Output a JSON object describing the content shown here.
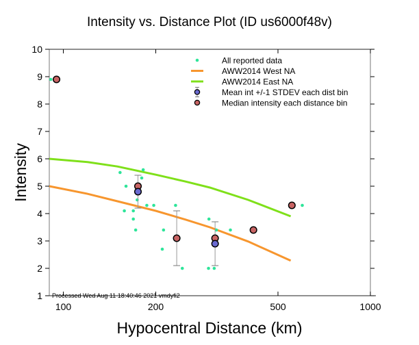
{
  "chart_data": {
    "type": "scatter",
    "title": "Intensity vs. Distance Plot (ID us6000f48v)",
    "xlabel": "Hypocentral Distance (km)",
    "ylabel": "Intensity",
    "xscale": "log",
    "xlim": [
      90,
      1000
    ],
    "ylim": [
      1,
      10
    ],
    "xticks": [
      100,
      200,
      500,
      1000
    ],
    "xtick_labels": [
      "100",
      "200",
      "500",
      "1000"
    ],
    "yticks": [
      1,
      2,
      3,
      4,
      5,
      6,
      7,
      8,
      9,
      10
    ],
    "ytick_labels": [
      "1",
      "2",
      "3",
      "4",
      "5",
      "6",
      "7",
      "8",
      "9",
      "10"
    ],
    "grid": false,
    "legend_position": "top-right",
    "legend": [
      {
        "label": "All reported data",
        "kind": "dot",
        "color": "#2ee59a"
      },
      {
        "label": "AWW2014 West NA",
        "kind": "line",
        "color": "#f7962e"
      },
      {
        "label": "AWW2014 East NA",
        "kind": "line",
        "color": "#7fe01a"
      },
      {
        "label": "Mean int +/-1 STDEV each dist bin",
        "kind": "mean",
        "color": "#6a6ad0"
      },
      {
        "label": "Median intensity each distance bin",
        "kind": "median",
        "color": "#c86464"
      }
    ],
    "annotation": "Processed Wed Aug 11 18:40:46 2021 vmdyfi2",
    "series": [
      {
        "name": "All reported data",
        "color": "#2ee59a",
        "points": [
          [
            91,
            8.9
          ],
          [
            153,
            5.5
          ],
          [
            182,
            5.6
          ],
          [
            180,
            5.3
          ],
          [
            160,
            5.0
          ],
          [
            174,
            4.5
          ],
          [
            187,
            4.3
          ],
          [
            197,
            4.3
          ],
          [
            158,
            4.1
          ],
          [
            169,
            4.1
          ],
          [
            169,
            3.8
          ],
          [
            172,
            3.4
          ],
          [
            212,
            3.4
          ],
          [
            210,
            2.7
          ],
          [
            232,
            4.3
          ],
          [
            244,
            2.0
          ],
          [
            298,
            3.8
          ],
          [
            315,
            3.4
          ],
          [
            350,
            3.4
          ],
          [
            600,
            4.3
          ],
          [
            297,
            2.0
          ],
          [
            310,
            2.0
          ]
        ]
      },
      {
        "name": "AWW2014 West NA",
        "color": "#f7962e",
        "points": [
          [
            90,
            5.0
          ],
          [
            120,
            4.72
          ],
          [
            150,
            4.45
          ],
          [
            200,
            4.1
          ],
          [
            250,
            3.78
          ],
          [
            300,
            3.5
          ],
          [
            400,
            2.98
          ],
          [
            550,
            2.28
          ]
        ]
      },
      {
        "name": "AWW2014 East NA",
        "color": "#7fe01a",
        "points": [
          [
            90,
            6.0
          ],
          [
            120,
            5.88
          ],
          [
            150,
            5.72
          ],
          [
            200,
            5.42
          ],
          [
            250,
            5.17
          ],
          [
            300,
            4.95
          ],
          [
            400,
            4.5
          ],
          [
            550,
            3.9
          ]
        ]
      },
      {
        "name": "Mean int +/-1 STDEV each dist bin",
        "color": "#6a6ad0",
        "points": [
          {
            "x": 175,
            "y": 4.8,
            "lo": 4.2,
            "hi": 5.4
          },
          {
            "x": 234,
            "y": 3.1,
            "lo": 2.1,
            "hi": 4.1,
            "mean_hidden": true
          },
          {
            "x": 312,
            "y": 2.9,
            "lo": 2.1,
            "hi": 3.7
          }
        ]
      },
      {
        "name": "Median intensity each distance bin",
        "color": "#c86464",
        "points": [
          [
            95,
            8.9
          ],
          [
            175,
            5.0
          ],
          [
            234,
            3.1
          ],
          [
            312,
            3.1
          ],
          [
            416,
            3.4
          ],
          [
            555,
            4.3
          ]
        ]
      }
    ]
  }
}
